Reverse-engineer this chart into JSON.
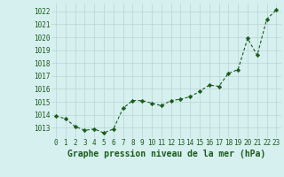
{
  "x": [
    0,
    1,
    2,
    3,
    4,
    5,
    6,
    7,
    8,
    9,
    10,
    11,
    12,
    13,
    14,
    15,
    16,
    17,
    18,
    19,
    20,
    21,
    22,
    23
  ],
  "y": [
    1013.9,
    1013.7,
    1013.1,
    1012.8,
    1012.9,
    1012.6,
    1012.9,
    1014.5,
    1015.1,
    1015.1,
    1014.9,
    1014.7,
    1015.1,
    1015.2,
    1015.4,
    1015.8,
    1016.3,
    1016.2,
    1017.2,
    1017.5,
    1019.9,
    1018.6,
    1021.4,
    1022.1
  ],
  "line_color": "#1a5c1a",
  "marker": "D",
  "marker_size": 2.2,
  "bg_color": "#d6efef",
  "grid_color": "#b8d4d4",
  "xlabel": "Graphe pression niveau de la mer (hPa)",
  "xlabel_fontsize": 7,
  "xlabel_color": "#1a5c1a",
  "ytick_labels": [
    1013,
    1014,
    1015,
    1016,
    1017,
    1018,
    1019,
    1020,
    1021,
    1022
  ],
  "ylim": [
    1012.2,
    1022.6
  ],
  "xlim": [
    -0.5,
    23.5
  ],
  "xtick_labels": [
    "0",
    "1",
    "2",
    "3",
    "4",
    "5",
    "6",
    "7",
    "8",
    "9",
    "10",
    "11",
    "12",
    "13",
    "14",
    "15",
    "16",
    "17",
    "18",
    "19",
    "20",
    "21",
    "22",
    "23"
  ],
  "tick_fontsize": 5.5,
  "tick_color": "#1a5c1a",
  "linewidth": 0.8
}
